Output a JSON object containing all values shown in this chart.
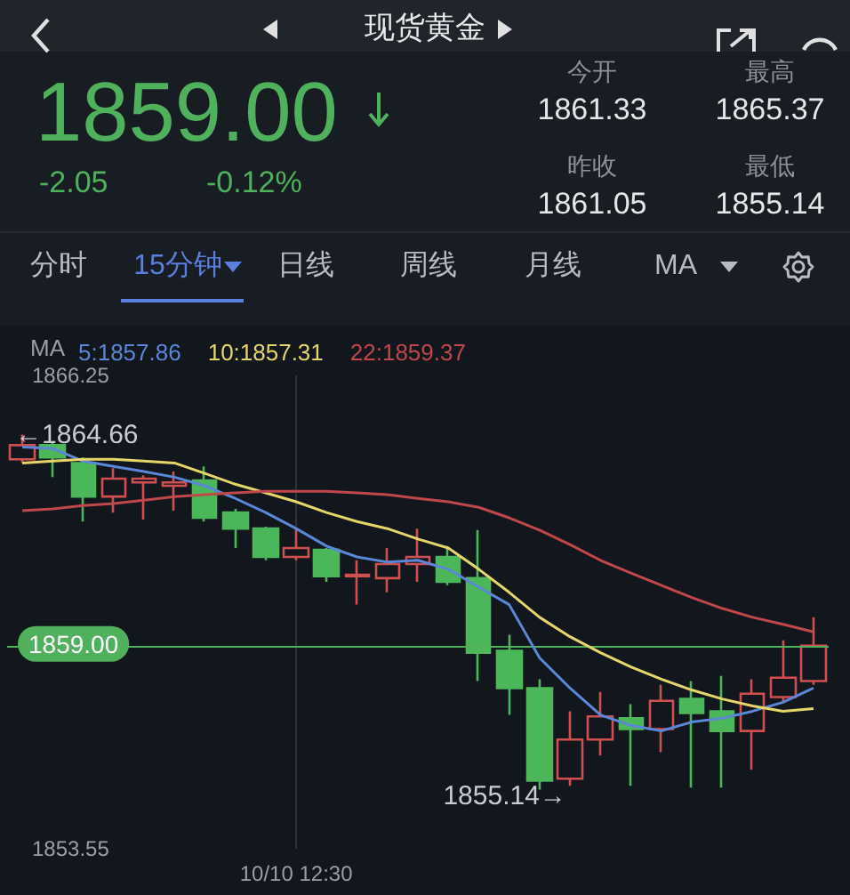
{
  "chart_data": {
    "type": "candlestick",
    "title": "现货黄金",
    "subtitle": "1859.00",
    "legend_title": "MA",
    "categories": [
      null,
      null,
      null,
      null,
      null,
      null,
      null,
      null,
      null,
      "10/10 12:30",
      null,
      null,
      null,
      null,
      null,
      null,
      null,
      null,
      null,
      null,
      null,
      null,
      null,
      null,
      null,
      null,
      null
    ],
    "ohlc": [
      [
        1864.0,
        1864.66,
        1863.9,
        1864.38
      ],
      [
        1864.38,
        1864.48,
        1863.52,
        1864.05
      ],
      [
        1863.9,
        1864.05,
        1862.33,
        1863.0
      ],
      [
        1863.0,
        1863.76,
        1862.57,
        1863.48
      ],
      [
        1863.38,
        1863.57,
        1862.38,
        1863.48
      ],
      [
        1863.29,
        1863.67,
        1862.62,
        1863.38
      ],
      [
        1863.43,
        1863.81,
        1862.33,
        1862.43
      ],
      [
        1862.57,
        1862.67,
        1861.62,
        1862.14
      ],
      [
        1862.14,
        1862.19,
        1861.29,
        1861.38
      ],
      [
        1861.38,
        1862.14,
        1861.29,
        1861.62
      ],
      [
        1861.57,
        1861.62,
        1860.71,
        1860.86
      ],
      [
        1860.86,
        1861.29,
        1860.1,
        1860.9
      ],
      [
        1860.81,
        1861.62,
        1860.43,
        1861.19
      ],
      [
        1861.19,
        1862.14,
        1860.71,
        1861.38
      ],
      [
        1861.38,
        1861.67,
        1860.62,
        1860.71
      ],
      [
        1860.81,
        1862.1,
        1858.05,
        1858.81
      ],
      [
        1858.86,
        1859.29,
        1857.14,
        1857.86
      ],
      [
        1857.86,
        1858.1,
        1855.14,
        1855.38
      ],
      [
        1855.43,
        1857.24,
        1855.24,
        1856.48
      ],
      [
        1856.48,
        1857.76,
        1856.05,
        1857.1
      ],
      [
        1857.05,
        1857.43,
        1855.24,
        1856.76
      ],
      [
        1856.76,
        1857.95,
        1856.14,
        1857.52
      ],
      [
        1857.57,
        1858.05,
        1855.19,
        1857.19
      ],
      [
        1857.24,
        1858.19,
        1855.19,
        1856.71
      ],
      [
        1856.71,
        1858.1,
        1855.67,
        1857.71
      ],
      [
        1857.62,
        1859.14,
        1857.48,
        1858.14
      ],
      [
        1858.05,
        1859.76,
        1857.95,
        1859.0
      ]
    ],
    "series": [
      {
        "name": "5:1857.86",
        "type": "line",
        "color": "#5b87d9",
        "values": [
          1864.33,
          1864.29,
          1863.95,
          1863.81,
          1863.67,
          1863.52,
          1863.29,
          1862.95,
          1862.57,
          1862.14,
          1861.67,
          1861.38,
          1861.24,
          1861.29,
          1861.05,
          1860.57,
          1860.1,
          1858.67,
          1857.86,
          1857.14,
          1856.86,
          1856.71,
          1856.95,
          1857.05,
          1857.24,
          1857.48,
          1857.86
        ]
      },
      {
        "name": "10:1857.31",
        "type": "line",
        "color": "#e6d66a",
        "values": [
          1863.9,
          1863.95,
          1864.0,
          1864.0,
          1863.95,
          1863.9,
          1863.62,
          1863.33,
          1863.1,
          1862.86,
          1862.57,
          1862.33,
          1862.14,
          1861.86,
          1861.62,
          1861.05,
          1860.43,
          1859.76,
          1859.24,
          1858.81,
          1858.43,
          1858.1,
          1857.81,
          1857.57,
          1857.38,
          1857.24,
          1857.31
        ]
      },
      {
        "name": "22:1859.37",
        "type": "line",
        "color": "#c0474a",
        "values": [
          1862.62,
          1862.67,
          1862.76,
          1862.81,
          1862.9,
          1863.0,
          1863.05,
          1863.1,
          1863.14,
          1863.14,
          1863.14,
          1863.1,
          1863.05,
          1862.95,
          1862.86,
          1862.71,
          1862.43,
          1862.1,
          1861.71,
          1861.29,
          1860.95,
          1860.62,
          1860.29,
          1860.0,
          1859.76,
          1859.57,
          1859.37
        ]
      }
    ],
    "ylim": [
      1853.55,
      1866.25
    ],
    "yticks": [
      1853.55,
      1866.25
    ],
    "legend": "top left",
    "marker": "none",
    "ref_lines": [
      {
        "axis": "y",
        "value": 1859.0,
        "label": "1859.00",
        "color": "#4fb15c"
      },
      {
        "axis": "x",
        "value": "10/10 12:30",
        "color": "#2c313a"
      }
    ],
    "annotations": [
      "-2.05",
      "-0.12%",
      "今开",
      "1861.33",
      "最高",
      "1865.37",
      "昨收",
      "1861.05",
      "最低",
      "1855.14",
      "分时",
      "15分钟",
      "日线",
      "周线",
      "月线",
      "MA",
      "←1864.66",
      "1855.14→"
    ]
  }
}
